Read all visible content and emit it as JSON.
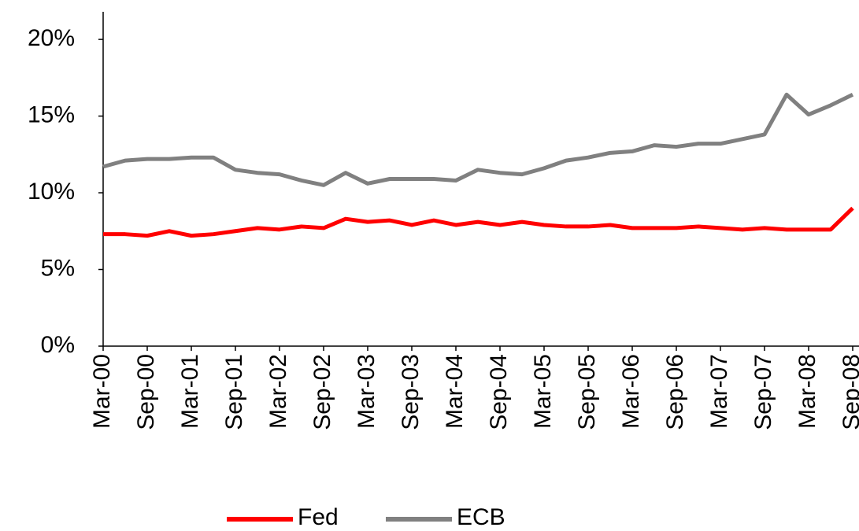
{
  "chart_data": {
    "type": "line",
    "categories": [
      "Mar-00",
      null,
      "Sep-00",
      null,
      "Mar-01",
      null,
      "Sep-01",
      null,
      "Mar-02",
      null,
      "Sep-02",
      null,
      "Mar-03",
      null,
      "Sep-03",
      null,
      "Mar-04",
      null,
      "Sep-04",
      null,
      "Mar-05",
      null,
      "Sep-05",
      null,
      "Mar-06",
      null,
      "Sep-06",
      null,
      "Mar-07",
      null,
      "Sep-07",
      null,
      "Mar-08",
      null,
      "Sep-08"
    ],
    "series": [
      {
        "name": "Fed",
        "color": "#ff0000",
        "values": [
          7.3,
          7.3,
          7.2,
          7.5,
          7.2,
          7.3,
          7.5,
          7.7,
          7.6,
          7.8,
          7.7,
          8.3,
          8.1,
          8.2,
          7.9,
          8.2,
          7.9,
          8.1,
          7.9,
          8.1,
          7.9,
          7.8,
          7.8,
          7.9,
          7.7,
          7.7,
          7.7,
          7.8,
          7.7,
          7.6,
          7.7,
          7.6,
          7.6,
          7.6,
          9.0
        ]
      },
      {
        "name": "ECB",
        "color": "#808080",
        "values": [
          11.7,
          12.1,
          12.2,
          12.2,
          12.3,
          12.3,
          11.5,
          11.3,
          11.2,
          10.8,
          10.5,
          11.3,
          10.6,
          10.9,
          10.9,
          10.9,
          10.8,
          11.5,
          11.3,
          11.2,
          11.6,
          12.1,
          12.3,
          12.6,
          12.7,
          13.1,
          13.0,
          13.2,
          13.2,
          13.5,
          13.8,
          16.4,
          15.1,
          15.7,
          16.4
        ]
      }
    ],
    "ylim": [
      0,
      21.8
    ],
    "yticks": [
      {
        "value": 0,
        "label": "0%"
      },
      {
        "value": 5,
        "label": "5%"
      },
      {
        "value": 10,
        "label": "10%"
      },
      {
        "value": 15,
        "label": "15%"
      },
      {
        "value": 20,
        "label": "20%"
      }
    ],
    "legend": "bottom"
  }
}
